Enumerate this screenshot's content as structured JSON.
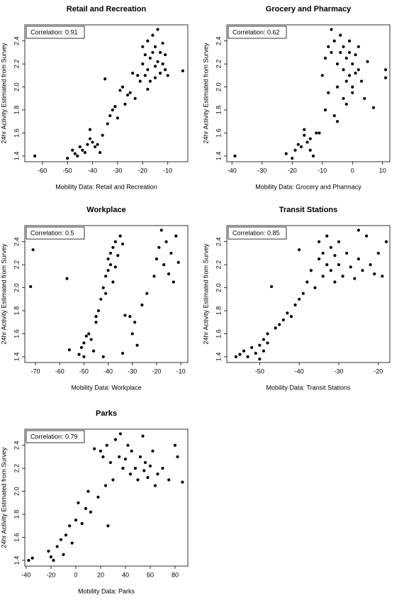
{
  "chart_data": [
    {
      "type": "scatter",
      "title": "Retail and Recreation",
      "x_label": "Mobility Data: Retail and Recreation",
      "y_label": "24hr Activity Estimated from Survey",
      "annotation": "Correlation: 0.91",
      "color": "#000000",
      "xlim": [
        -67,
        -2
      ],
      "ylim": [
        1.35,
        2.54
      ],
      "xticks": [
        -60,
        -50,
        -40,
        -30,
        -20,
        -10
      ],
      "yticks": [
        1.4,
        1.6,
        1.8,
        {
          "value": 2,
          "label": "2.0"
        },
        2.2,
        2.4
      ],
      "x": [
        -63,
        -50,
        -48,
        -47,
        -46,
        -45,
        -44,
        -43,
        -42,
        -41,
        -41,
        -40,
        -39,
        -38,
        -37,
        -36,
        -35,
        -34,
        -33,
        -32,
        -31,
        -30,
        -29,
        -28,
        -27,
        -26,
        -25,
        -24,
        -23,
        -22,
        -21,
        -20,
        -20,
        -19,
        -19,
        -18,
        -18,
        -17,
        -17,
        -16,
        -16,
        -15,
        -15,
        -15,
        -14,
        -14,
        -13,
        -13,
        -12,
        -12,
        -11,
        -11,
        -10,
        -4,
        -18
      ],
      "y": [
        1.4,
        1.38,
        1.45,
        1.42,
        1.4,
        1.48,
        1.45,
        1.43,
        1.5,
        1.63,
        1.55,
        1.52,
        1.48,
        1.5,
        1.43,
        1.58,
        2.07,
        1.68,
        1.75,
        1.8,
        1.83,
        1.73,
        1.97,
        2.0,
        1.85,
        1.93,
        1.95,
        2.12,
        1.9,
        2.1,
        2.05,
        2.2,
        2.35,
        2.1,
        2.28,
        2.15,
        2.4,
        2.25,
        2.05,
        2.3,
        2.45,
        2.18,
        2.35,
        2.08,
        2.22,
        2.5,
        2.12,
        2.3,
        2.2,
        2.38,
        2.15,
        2.28,
        2.1,
        2.14,
        1.98
      ]
    },
    {
      "type": "scatter",
      "title": "Grocery and Pharmacy",
      "x_label": "Mobility Data: Grocery and Pharmacy",
      "y_label": "24hr Activity Estimated from Survey",
      "annotation": "Correlation: 0.62",
      "color": "#000000",
      "xlim": [
        -41.7,
        12.4
      ],
      "ylim": [
        1.35,
        2.54
      ],
      "xticks": [
        -40,
        -30,
        -20,
        -10,
        0,
        10
      ],
      "yticks": [
        1.4,
        1.6,
        1.8,
        {
          "value": 2,
          "label": "2.0"
        },
        2.2,
        2.4
      ],
      "x": [
        -39,
        -22,
        -20,
        -19,
        -18,
        -17,
        -16,
        -16,
        -15,
        -14,
        -14,
        -13,
        -12,
        -11,
        -10,
        -9,
        -8,
        -8,
        -7,
        -7,
        -6,
        -6,
        -5,
        -5,
        -5,
        -4,
        -4,
        -3,
        -3,
        -3,
        -2,
        -2,
        -2,
        -1,
        -1,
        -1,
        0,
        0,
        0,
        1,
        1,
        2,
        2,
        3,
        4,
        5,
        7,
        11,
        11,
        -9
      ],
      "y": [
        1.4,
        1.42,
        1.38,
        1.45,
        1.5,
        1.48,
        1.58,
        1.63,
        1.52,
        1.45,
        1.55,
        1.4,
        1.6,
        1.6,
        2.1,
        1.8,
        2.35,
        1.95,
        2.3,
        2.5,
        1.75,
        2.4,
        2.2,
        2.0,
        1.7,
        2.3,
        2.45,
        2.15,
        1.9,
        2.35,
        2.25,
        2.05,
        1.85,
        2.3,
        2.1,
        2.4,
        2.2,
        1.95,
        2.0,
        2.28,
        2.12,
        2.15,
        2.35,
        2.05,
        1.9,
        2.22,
        1.82,
        2.15,
        2.08,
        2.25
      ]
    },
    {
      "type": "scatter",
      "title": "Workplace",
      "x_label": "Mobility Data: Workplace",
      "y_label": "24hr Activity Estimated from Survey",
      "annotation": "Correlation: 0.5",
      "color": "#000000",
      "xlim": [
        -74.4,
        -7.1
      ],
      "ylim": [
        1.35,
        2.54
      ],
      "xticks": [
        -70,
        -60,
        -50,
        -40,
        -30,
        -20,
        -10
      ],
      "yticks": [
        1.4,
        1.6,
        1.8,
        {
          "value": 2,
          "label": "2.0"
        },
        2.2,
        2.4
      ],
      "x": [
        -72,
        -71,
        -57,
        -56,
        -52,
        -51,
        -50,
        -50,
        -49,
        -48,
        -47,
        -46,
        -45,
        -45,
        -44,
        -43,
        -42,
        -42,
        -41,
        -41,
        -40,
        -40,
        -39,
        -39,
        -38,
        -38,
        -37,
        -37,
        -36,
        -35,
        -34,
        -34,
        -33,
        -31,
        -30,
        -29,
        -28,
        -26,
        -24,
        -21,
        -20,
        -19,
        -18,
        -17,
        -16,
        -15,
        -14,
        -13,
        -12,
        -11
      ],
      "y": [
        2.01,
        2.33,
        2.08,
        1.46,
        1.42,
        1.48,
        1.4,
        1.52,
        1.58,
        1.6,
        1.55,
        1.45,
        1.7,
        1.75,
        1.8,
        1.9,
        2.0,
        1.4,
        2.1,
        1.95,
        2.15,
        2.25,
        2.2,
        2.3,
        2.05,
        2.35,
        2.4,
        2.18,
        2.28,
        2.45,
        1.43,
        2.38,
        1.76,
        1.75,
        1.6,
        1.7,
        1.5,
        1.85,
        1.95,
        2.1,
        2.25,
        2.35,
        2.5,
        2.2,
        2.4,
        2.12,
        2.3,
        2.05,
        2.45,
        2.22
      ]
    },
    {
      "type": "scatter",
      "title": "Transit Stations",
      "x_label": "Mobility Data: Transit Stations",
      "y_label": "24hr Activity Estimated from Survey",
      "annotation": "Correlation: 0.85",
      "color": "#000000",
      "xlim": [
        -58.3,
        -17.1
      ],
      "ylim": [
        1.35,
        2.54
      ],
      "xticks": [
        -50,
        -40,
        -30,
        -20
      ],
      "yticks": [
        1.4,
        1.6,
        1.8,
        {
          "value": 2,
          "label": "2.0"
        },
        2.2,
        2.4
      ],
      "x": [
        -56,
        -55,
        -54,
        -53,
        -52,
        -51,
        -50,
        -50,
        -49,
        -49,
        -48,
        -48,
        -47,
        -46,
        -45,
        -44,
        -43,
        -42,
        -41,
        -40,
        -40,
        -39,
        -38,
        -37,
        -36,
        -35,
        -35,
        -34,
        -34,
        -33,
        -33,
        -32,
        -32,
        -31,
        -31,
        -30,
        -30,
        -29,
        -28,
        -27,
        -26,
        -25,
        -25,
        -24,
        -23,
        -22,
        -21,
        -20,
        -19,
        -18
      ],
      "y": [
        1.4,
        1.42,
        1.45,
        1.4,
        1.48,
        1.43,
        1.5,
        1.38,
        1.55,
        1.45,
        1.6,
        1.52,
        2.01,
        1.65,
        1.68,
        1.72,
        1.78,
        1.75,
        1.85,
        1.9,
        2.33,
        1.95,
        2.05,
        2.15,
        2.0,
        2.25,
        2.4,
        2.1,
        2.3,
        2.2,
        2.45,
        2.15,
        2.35,
        2.05,
        2.28,
        2.2,
        2.4,
        2.1,
        2.3,
        2.18,
        2.08,
        2.25,
        2.5,
        2.15,
        2.45,
        2.2,
        2.12,
        2.3,
        2.1,
        2.4
      ]
    },
    {
      "type": "scatter",
      "title": "Parks",
      "x_label": "Mobility Data: Parks",
      "y_label": "24hr Activity Estimated from Survey",
      "annotation": "Correlation: 0.79",
      "color": "#000000",
      "xlim": [
        -41.1,
        90.3
      ],
      "ylim": [
        1.35,
        2.54
      ],
      "xticks": [
        -40,
        -20,
        0,
        20,
        40,
        60,
        80
      ],
      "yticks": [
        1.4,
        1.6,
        1.8,
        {
          "value": 2,
          "label": "2.0"
        },
        2.2,
        2.4
      ],
      "x": [
        -38,
        -35,
        -22,
        -20,
        -18,
        -15,
        -12,
        -10,
        -8,
        -5,
        -3,
        0,
        2,
        5,
        8,
        10,
        12,
        15,
        18,
        20,
        22,
        24,
        25,
        26,
        28,
        30,
        32,
        35,
        36,
        38,
        40,
        42,
        44,
        45,
        48,
        50,
        52,
        54,
        55,
        56,
        58,
        60,
        62,
        64,
        66,
        70,
        75,
        80,
        82,
        86
      ],
      "y": [
        1.4,
        1.42,
        1.48,
        1.43,
        1.4,
        1.52,
        1.58,
        1.45,
        1.62,
        1.7,
        1.55,
        1.75,
        1.9,
        1.72,
        1.85,
        2.0,
        1.82,
        2.37,
        1.95,
        2.35,
        2.3,
        2.05,
        2.4,
        1.7,
        2.25,
        2.1,
        2.45,
        2.3,
        2.5,
        2.2,
        2.28,
        2.4,
        2.15,
        2.35,
        2.2,
        2.1,
        2.3,
        2.48,
        2.18,
        2.25,
        2.12,
        2.22,
        2.35,
        2.05,
        2.15,
        2.2,
        2.1,
        2.4,
        2.3,
        2.08
      ]
    }
  ]
}
